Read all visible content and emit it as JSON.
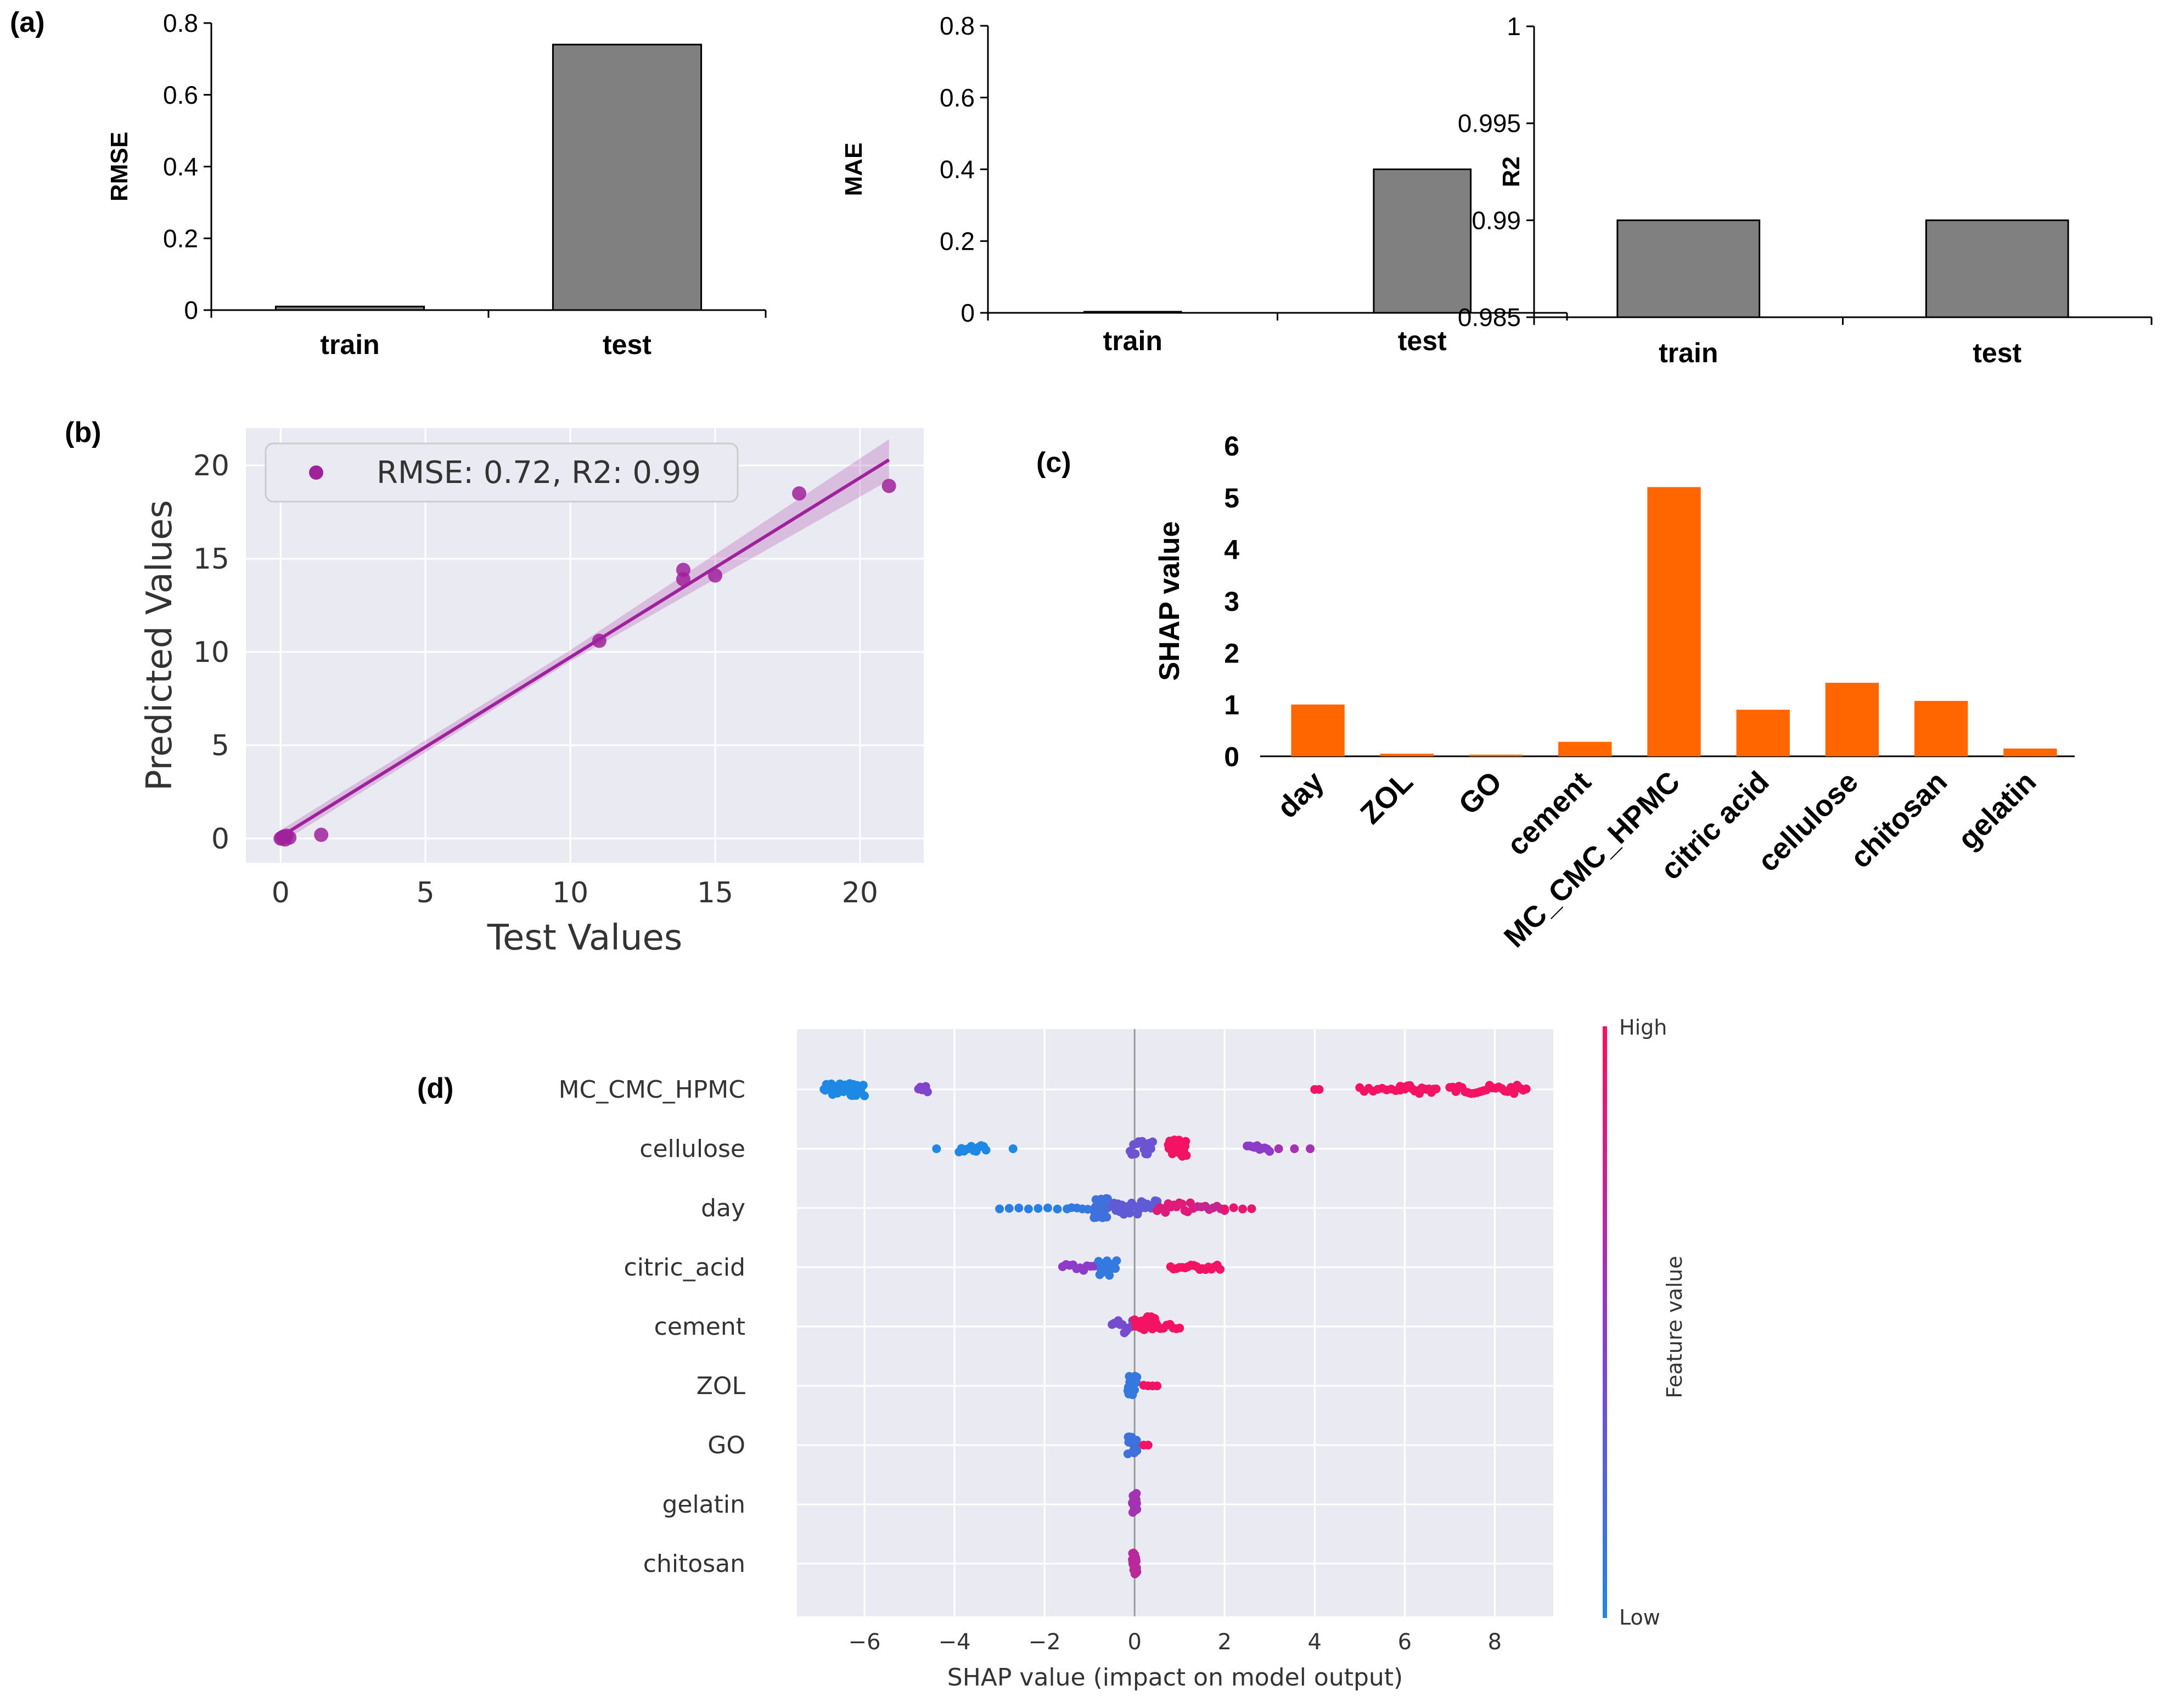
{
  "panels": {
    "a": "(a)",
    "b": "(b)",
    "c": "(c)",
    "d": "(d)"
  },
  "colors": {
    "bar_gray": "#808080",
    "bar_orange": "#ff6600",
    "scatter_purple": "#a0219c",
    "sns_bg": "#eaeaf2",
    "shap_blue": "#1e88e5",
    "shap_red": "#ff0d57"
  },
  "chart_data": [
    {
      "id": "a1",
      "type": "bar",
      "categories": [
        "train",
        "test"
      ],
      "values": [
        0.01,
        0.74
      ],
      "ylabel": "RMSE",
      "ylim": [
        0,
        0.8
      ],
      "yticks": [
        0,
        0.2,
        0.4,
        0.6,
        0.8
      ],
      "ytick_labels": [
        "0",
        "0.2",
        "0.4",
        "0.6",
        "0.8"
      ]
    },
    {
      "id": "a2",
      "type": "bar",
      "categories": [
        "train",
        "test"
      ],
      "values": [
        0.003,
        0.4
      ],
      "ylabel": "MAE",
      "ylim": [
        0,
        0.8
      ],
      "yticks": [
        0,
        0.2,
        0.4,
        0.6,
        0.8
      ],
      "ytick_labels": [
        "0",
        "0.2",
        "0.4",
        "0.6",
        "0.8"
      ]
    },
    {
      "id": "a3",
      "type": "bar",
      "categories": [
        "train",
        "test"
      ],
      "values": [
        0.99,
        0.99
      ],
      "ylabel": "R2",
      "ylim": [
        0.985,
        1
      ],
      "yticks": [
        0.985,
        0.99,
        0.995,
        1
      ],
      "ytick_labels": [
        "0.985",
        "0.99",
        "0.995",
        "1"
      ]
    },
    {
      "id": "b",
      "type": "scatter",
      "xlabel": "Test Values",
      "ylabel": "Predicted Values",
      "xlim": [
        -1.2,
        22.2
      ],
      "ylim": [
        -1.3,
        22
      ],
      "xticks": [
        0,
        5,
        10,
        15,
        20
      ],
      "yticks": [
        0,
        5,
        10,
        15,
        20
      ],
      "legend": "RMSE: 0.72, R2: 0.99",
      "points": [
        [
          0,
          0
        ],
        [
          0.05,
          0.05
        ],
        [
          0.1,
          0.1
        ],
        [
          0.15,
          -0.05
        ],
        [
          0.2,
          0.15
        ],
        [
          0.3,
          0.05
        ],
        [
          1.4,
          0.2
        ],
        [
          11,
          10.6
        ],
        [
          13.9,
          14.4
        ],
        [
          13.9,
          13.9
        ],
        [
          15,
          14.1
        ],
        [
          17.9,
          18.5
        ],
        [
          21,
          18.9
        ]
      ],
      "fit_line": [
        [
          0,
          0.1
        ],
        [
          21,
          20.3
        ]
      ]
    },
    {
      "id": "c",
      "type": "bar",
      "ylabel": "SHAP value",
      "categories": [
        "day",
        "ZOL",
        "GO",
        "cement",
        "MC_CMC_HPMC",
        "citric acid",
        "cellulose",
        "chitosan",
        "gelatin"
      ],
      "values": [
        1.0,
        0.05,
        0.03,
        0.28,
        5.2,
        0.9,
        1.42,
        1.07,
        0.15
      ],
      "ylim": [
        0,
        6
      ],
      "yticks": [
        0,
        1,
        2,
        3,
        4,
        5,
        6
      ]
    },
    {
      "id": "d",
      "type": "scatter",
      "subtype": "shap-beeswarm",
      "xlabel": "SHAP value (impact on model output)",
      "features": [
        "MC_CMC_HPMC",
        "cellulose",
        "day",
        "citric_acid",
        "cement",
        "ZOL",
        "GO",
        "gelatin",
        "chitosan"
      ],
      "xlim": [
        -7.5,
        9.3
      ],
      "xticks": [
        -6,
        -4,
        -2,
        0,
        2,
        4,
        6,
        8
      ],
      "colorbar": {
        "label": "Feature value",
        "high": "High",
        "low": "Low"
      },
      "clusters": [
        {
          "f": 0,
          "x0": -6.9,
          "x1": -6.0,
          "n": 34,
          "c": 0.0,
          "j": 0.3
        },
        {
          "f": 0,
          "x0": -4.8,
          "x1": -4.6,
          "n": 6,
          "c": 0.45,
          "j": 0.2
        },
        {
          "f": 0,
          "x0": 4.0,
          "x1": 4.1,
          "n": 2,
          "c": 0.95,
          "j": 0.0
        },
        {
          "f": 0,
          "x0": 5.0,
          "x1": 5.9,
          "n": 10,
          "c": 0.95,
          "j": 0.1
        },
        {
          "f": 0,
          "x0": 5.9,
          "x1": 6.7,
          "n": 16,
          "c": 0.95,
          "j": 0.2
        },
        {
          "f": 0,
          "x0": 7.0,
          "x1": 8.7,
          "n": 26,
          "c": 0.95,
          "j": 0.2
        },
        {
          "f": 1,
          "x0": -4.4,
          "x1": -4.3,
          "n": 1,
          "c": 0.0,
          "j": 0.0
        },
        {
          "f": 1,
          "x0": -3.9,
          "x1": -3.3,
          "n": 12,
          "c": 0.0,
          "j": 0.15
        },
        {
          "f": 1,
          "x0": -2.7,
          "x1": -2.6,
          "n": 1,
          "c": 0.0,
          "j": 0.0
        },
        {
          "f": 1,
          "x0": -0.1,
          "x1": 0.4,
          "n": 14,
          "c": 0.35,
          "j": 0.35
        },
        {
          "f": 1,
          "x0": 0.75,
          "x1": 1.15,
          "n": 28,
          "c": 0.95,
          "j": 0.4
        },
        {
          "f": 1,
          "x0": 2.5,
          "x1": 3.0,
          "n": 10,
          "c": 0.5,
          "j": 0.15
        },
        {
          "f": 1,
          "x0": 3.2,
          "x1": 3.9,
          "n": 3,
          "c": 0.6,
          "j": 0.0
        },
        {
          "f": 2,
          "x0": -3.0,
          "x1": -1.5,
          "n": 8,
          "c": 0.05,
          "j": 0.05
        },
        {
          "f": 2,
          "x0": -1.4,
          "x1": -0.8,
          "n": 6,
          "c": 0.1,
          "j": 0.1
        },
        {
          "f": 2,
          "x0": -0.9,
          "x1": -0.6,
          "n": 30,
          "c": 0.15,
          "j": 0.45
        },
        {
          "f": 2,
          "x0": -0.5,
          "x1": 0.5,
          "n": 24,
          "c": 0.3,
          "j": 0.35
        },
        {
          "f": 2,
          "x0": 0.5,
          "x1": 1.3,
          "n": 14,
          "c": 0.85,
          "j": 0.25
        },
        {
          "f": 2,
          "x0": 1.4,
          "x1": 2.0,
          "n": 8,
          "c": 0.75,
          "j": 0.15
        },
        {
          "f": 2,
          "x0": 2.0,
          "x1": 2.6,
          "n": 4,
          "c": 0.9,
          "j": 0.05
        },
        {
          "f": 3,
          "x0": -1.6,
          "x1": -0.9,
          "n": 10,
          "c": 0.5,
          "j": 0.15
        },
        {
          "f": 3,
          "x0": -0.8,
          "x1": -0.4,
          "n": 16,
          "c": 0.1,
          "j": 0.4
        },
        {
          "f": 3,
          "x0": 0.8,
          "x1": 1.9,
          "n": 18,
          "c": 0.95,
          "j": 0.12
        },
        {
          "f": 4,
          "x0": -0.5,
          "x1": 0.0,
          "n": 12,
          "c": 0.4,
          "j": 0.3
        },
        {
          "f": 4,
          "x0": 0.0,
          "x1": 0.5,
          "n": 20,
          "c": 0.95,
          "j": 0.45
        },
        {
          "f": 4,
          "x0": 0.5,
          "x1": 1.0,
          "n": 8,
          "c": 0.95,
          "j": 0.1
        },
        {
          "f": 5,
          "x0": -0.15,
          "x1": 0.05,
          "n": 20,
          "c": 0.1,
          "j": 0.45
        },
        {
          "f": 5,
          "x0": 0.2,
          "x1": 0.5,
          "n": 4,
          "c": 0.95,
          "j": 0.05
        },
        {
          "f": 6,
          "x0": -0.15,
          "x1": 0.05,
          "n": 22,
          "c": 0.15,
          "j": 0.45
        },
        {
          "f": 6,
          "x0": 0.2,
          "x1": 0.3,
          "n": 2,
          "c": 0.95,
          "j": 0.0
        },
        {
          "f": 7,
          "x0": -0.05,
          "x1": 0.05,
          "n": 20,
          "c": 0.6,
          "j": 0.5
        },
        {
          "f": 8,
          "x0": -0.05,
          "x1": 0.05,
          "n": 20,
          "c": 0.7,
          "j": 0.5
        }
      ]
    }
  ]
}
